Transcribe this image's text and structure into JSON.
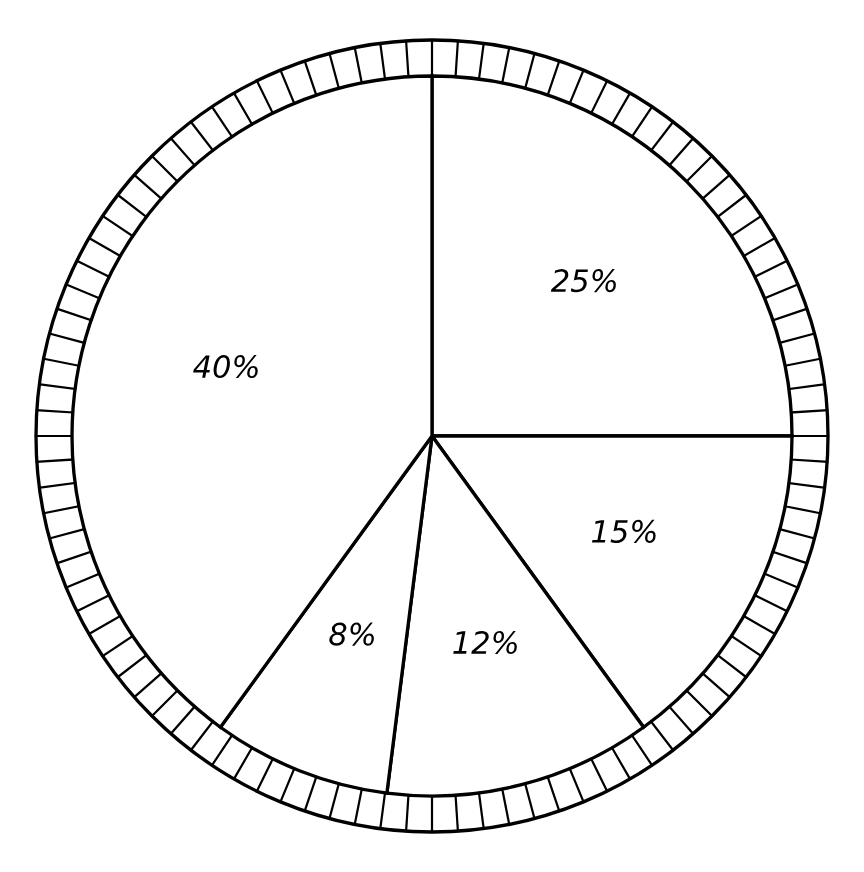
{
  "chart_data": {
    "type": "pie",
    "categories": [
      null,
      null,
      null,
      null,
      null
    ],
    "values": [
      25,
      15,
      12,
      8,
      40
    ],
    "colors": [
      "#ffffff",
      "#ffffff",
      "#ffffff",
      "#ffffff",
      "#ffffff"
    ],
    "value_labels": [
      "25%",
      "15%",
      "12%",
      "8%",
      "40%"
    ]
  }
}
